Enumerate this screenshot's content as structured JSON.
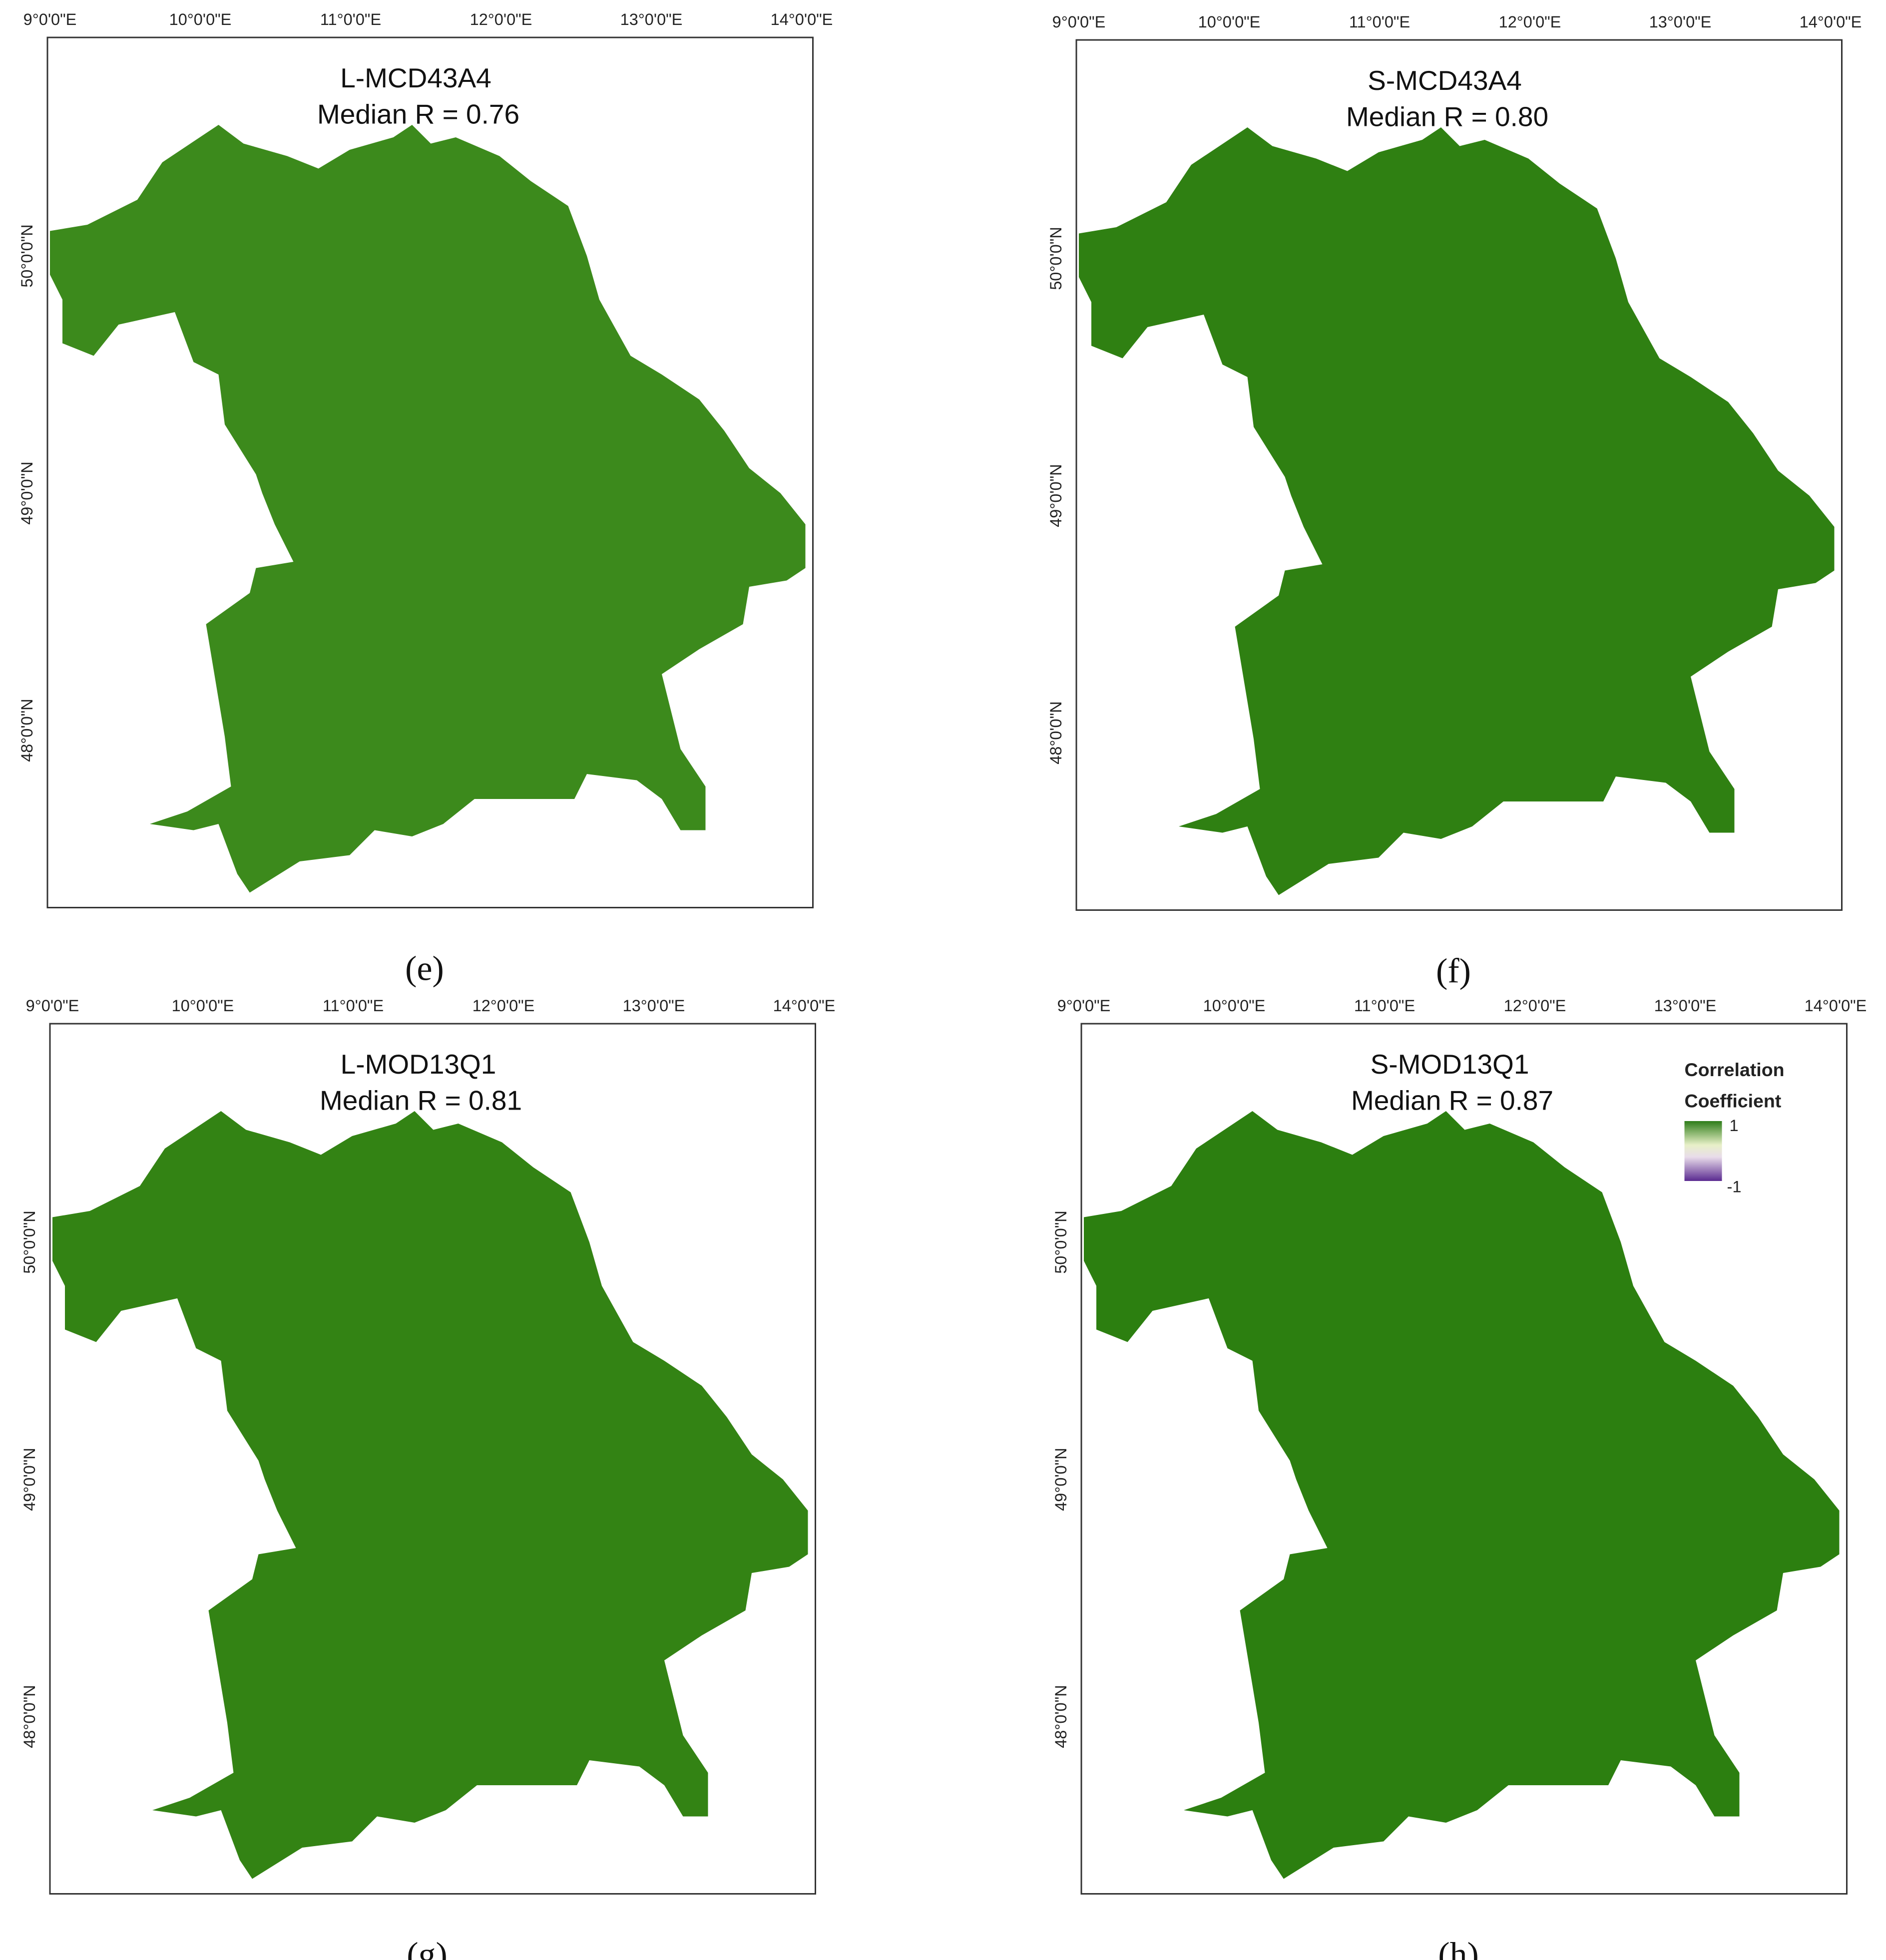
{
  "lon_labels": [
    "9°0'0\"E",
    "10°0'0\"E",
    "11°0'0\"E",
    "12°0'0\"E",
    "13°0'0\"E",
    "14°0'0\"E"
  ],
  "lat_labels": [
    "50°0'0\"N",
    "49°0'0\"N",
    "48°0'0\"N"
  ],
  "panels": [
    {
      "title": "L-MCD43A4",
      "subtitle": "Median R = 0.76",
      "label": "(e)"
    },
    {
      "title": "S-MCD43A4",
      "subtitle": "Median R = 0.80",
      "label": "(f)"
    },
    {
      "title": "L-MOD13Q1",
      "subtitle": "Median R = 0.81",
      "label": "(g)"
    },
    {
      "title": "S-MOD13Q1",
      "subtitle": "Median R = 0.87",
      "label": "(h)"
    }
  ],
  "legend": {
    "title_lines": [
      "Correlation",
      "Coefficient"
    ],
    "max_label": "1",
    "min_label": "-1"
  }
}
